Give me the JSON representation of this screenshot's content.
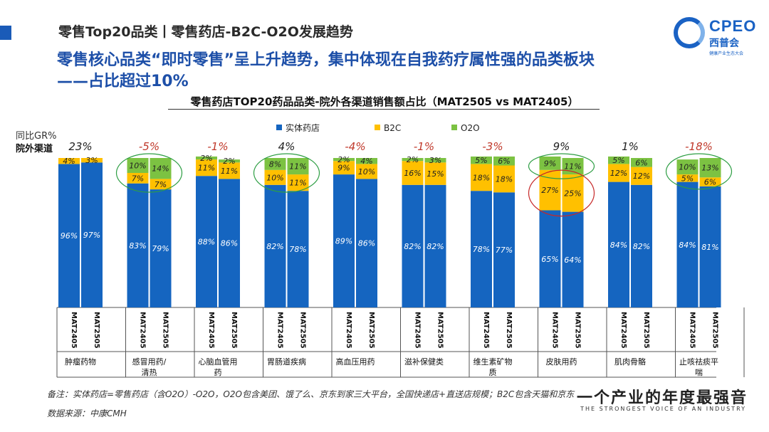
{
  "header": {
    "title": "零售Top20品类丨零售药店-B2C-O2O发展趋势",
    "headline_1": "零售核心品类“即时零售”呈上升趋势，集中体现在自我药疗属性强的品类板块",
    "headline_2": "——占比超过10%"
  },
  "logo": {
    "text": "CPEO",
    "cn": "西普会",
    "sub": "健康产业生态大会"
  },
  "side_labels": {
    "gr": "同比GR%",
    "channel": "院外渠道"
  },
  "notes": {
    "note": "备注：实体药店=零售药店（含O2O）-O2O，O2O包含美团、饿了么、京东到家三大平台，全国快递店+直送店规模；B2C包含天猫和京东",
    "source": "数据来源：中康CMH"
  },
  "slogan": {
    "cn": "一个产业的年度最强音",
    "en": "THE STRONGEST VOICE OF AN INDUSTRY"
  },
  "chart_data": {
    "type": "bar",
    "stacked": true,
    "title": "零售药店TOP20药品品类-院外各渠道销售额占比（MAT2505 vs MAT2405）",
    "periods": [
      "MAT2405",
      "MAT2505"
    ],
    "legend": [
      {
        "name": "实体药店",
        "color": "#1565c0"
      },
      {
        "name": "B2C",
        "color": "#ffc000"
      },
      {
        "name": "O2O",
        "color": "#7cc242"
      }
    ],
    "ylim": [
      0,
      100
    ],
    "categories": [
      "肿瘤药物",
      "感冒用药/清热",
      "心脑血管用药",
      "胃肠道疾病",
      "高血压用药",
      "滋补保健类",
      "维生素矿物质",
      "皮肤用药",
      "肌肉骨骼",
      "止咳祛痰平喘"
    ],
    "growth_labels": [
      "23%",
      "-5%",
      "-1%",
      "4%",
      "-4%",
      "-1%",
      "-3%",
      "9%",
      "1%",
      "-18%"
    ],
    "growth_values": [
      23,
      -5,
      -1,
      4,
      -4,
      -1,
      -3,
      9,
      1,
      -18
    ],
    "series": [
      {
        "name": "实体药店",
        "values": [
          [
            96,
            97
          ],
          [
            83,
            79
          ],
          [
            88,
            86
          ],
          [
            82,
            78
          ],
          [
            89,
            86
          ],
          [
            82,
            82
          ],
          [
            78,
            77
          ],
          [
            65,
            64
          ],
          [
            84,
            82
          ],
          [
            84,
            81
          ]
        ]
      },
      {
        "name": "B2C",
        "values": [
          [
            4,
            3
          ],
          [
            7,
            7
          ],
          [
            11,
            11
          ],
          [
            10,
            11
          ],
          [
            9,
            10
          ],
          [
            16,
            15
          ],
          [
            18,
            18
          ],
          [
            27,
            25
          ],
          [
            12,
            12
          ],
          [
            5,
            6
          ]
        ]
      },
      {
        "name": "O2O",
        "values": [
          [
            0,
            0
          ],
          [
            10,
            14
          ],
          [
            2,
            2
          ],
          [
            8,
            11
          ],
          [
            2,
            4
          ],
          [
            2,
            3
          ],
          [
            5,
            6
          ],
          [
            9,
            11
          ],
          [
            5,
            6
          ],
          [
            10,
            13
          ]
        ]
      }
    ],
    "highlights": [
      {
        "category": "感冒用药/清热",
        "series": "O2O+B2C",
        "color": "#2e9e44"
      },
      {
        "category": "胃肠道疾病",
        "series": "O2O+B2C",
        "color": "#2e9e44"
      },
      {
        "category": "皮肤用药",
        "series": "O2O",
        "color": "#2e9e44"
      },
      {
        "category": "皮肤用药",
        "series": "B2C",
        "color": "#c62828"
      },
      {
        "category": "止咳祛痰平喘",
        "series": "O2O+B2C",
        "color": "#2e9e44"
      }
    ]
  }
}
